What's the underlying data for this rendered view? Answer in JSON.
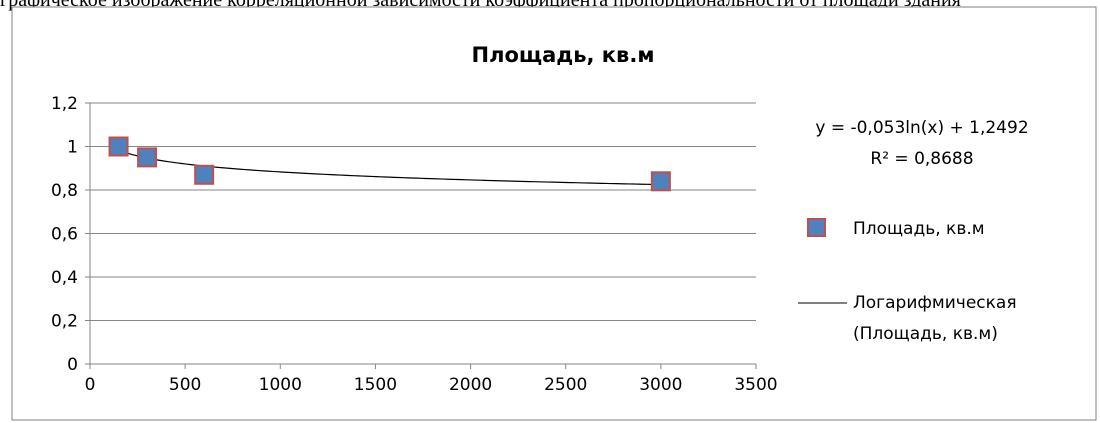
{
  "page_header_text": "графическое изображение корреляционной зависимости коэффициента пропорциональности от площади здания",
  "chart_data": {
    "type": "scatter",
    "title": "Площадь, кв.м",
    "xlabel": "",
    "ylabel": "",
    "xlim": [
      0,
      3500
    ],
    "ylim": [
      0,
      1.2
    ],
    "x_ticks": [
      "0",
      "500",
      "1000",
      "1500",
      "2000",
      "2500",
      "3000",
      "3500"
    ],
    "y_ticks": [
      "0",
      "0,2",
      "0,4",
      "0,6",
      "0,8",
      "1",
      "1,2"
    ],
    "grid": "horizontal",
    "legend_position": "right",
    "series": [
      {
        "name": "Площадь, кв.м",
        "marker": "square",
        "fill_color": "#4f81bd",
        "edge_color": "#c0504d",
        "points": [
          {
            "x": 150,
            "y": 1.0
          },
          {
            "x": 300,
            "y": 0.95
          },
          {
            "x": 600,
            "y": 0.87
          },
          {
            "x": 3000,
            "y": 0.84
          }
        ]
      }
    ],
    "trendline": {
      "type": "logarithmic",
      "name": "Логарифмическая (Площадь, кв.м)",
      "legend_lines": [
        "Логарифмическая",
        "(Площадь, кв.м)"
      ],
      "a": -0.053,
      "b": 1.2492,
      "x_from": 150,
      "x_to": 3000,
      "color": "#000000",
      "equation": "y = -0,053ln(x) + 1,2492",
      "r_squared": "R² = 0,8688"
    }
  }
}
